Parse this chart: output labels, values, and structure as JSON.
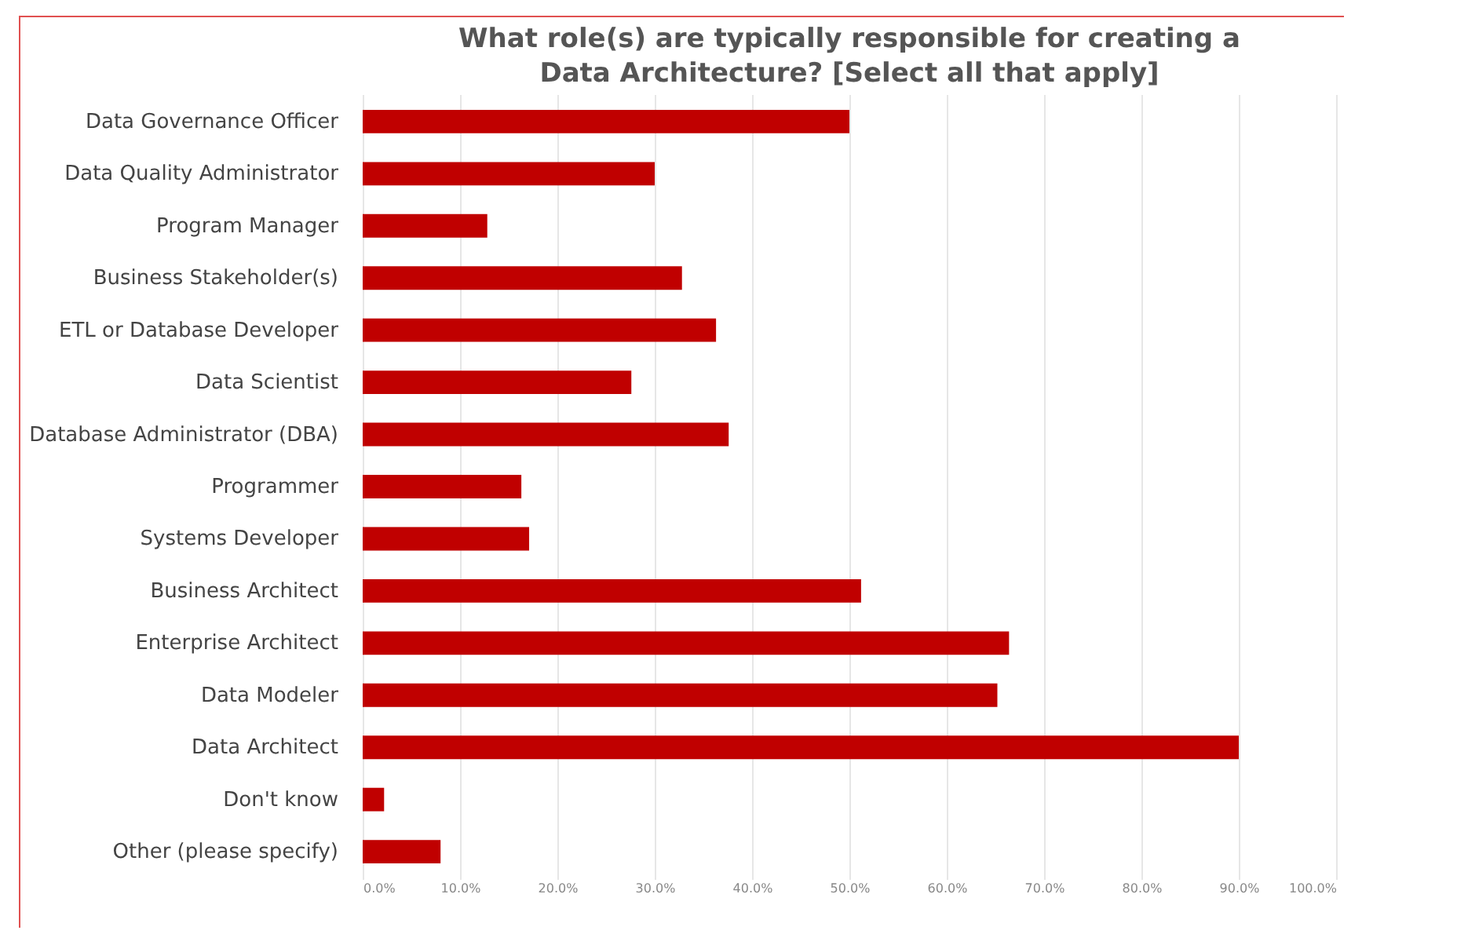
{
  "chart_data": {
    "type": "bar",
    "orientation": "horizontal",
    "title": "What role(s) are typically responsible for creating a Data Architecture?  [Select all that apply]",
    "categories": [
      "Data Governance Officer",
      "Data Quality Administrator",
      "Program Manager",
      "Business Stakeholder(s)",
      "ETL or Database Developer",
      "Data Scientist",
      "Database Administrator (DBA)",
      "Programmer",
      "Systems Developer",
      "Business Architect",
      "Enterprise Architect",
      "Data Modeler",
      "Data Architect",
      "Don't know",
      "Other (please specify)"
    ],
    "values": [
      50,
      30,
      12.8,
      32.8,
      36.3,
      27.6,
      37.6,
      16.3,
      17.1,
      51.2,
      66.4,
      65.2,
      90,
      2.2,
      8
    ],
    "color": "#c00000",
    "xlim": [
      0,
      100
    ],
    "xticks": [
      {
        "value": 0,
        "label": "0.0%"
      },
      {
        "value": 10,
        "label": "10.0%"
      },
      {
        "value": 20,
        "label": "20.0%"
      },
      {
        "value": 30,
        "label": "30.0%"
      },
      {
        "value": 40,
        "label": "40.0%"
      },
      {
        "value": 50,
        "label": "50.0%"
      },
      {
        "value": 60,
        "label": "60.0%"
      },
      {
        "value": 70,
        "label": "70.0%"
      },
      {
        "value": 80,
        "label": "80.0%"
      },
      {
        "value": 90,
        "label": "90.0%"
      },
      {
        "value": 100,
        "label": "100.0%"
      }
    ],
    "grid": "x"
  }
}
